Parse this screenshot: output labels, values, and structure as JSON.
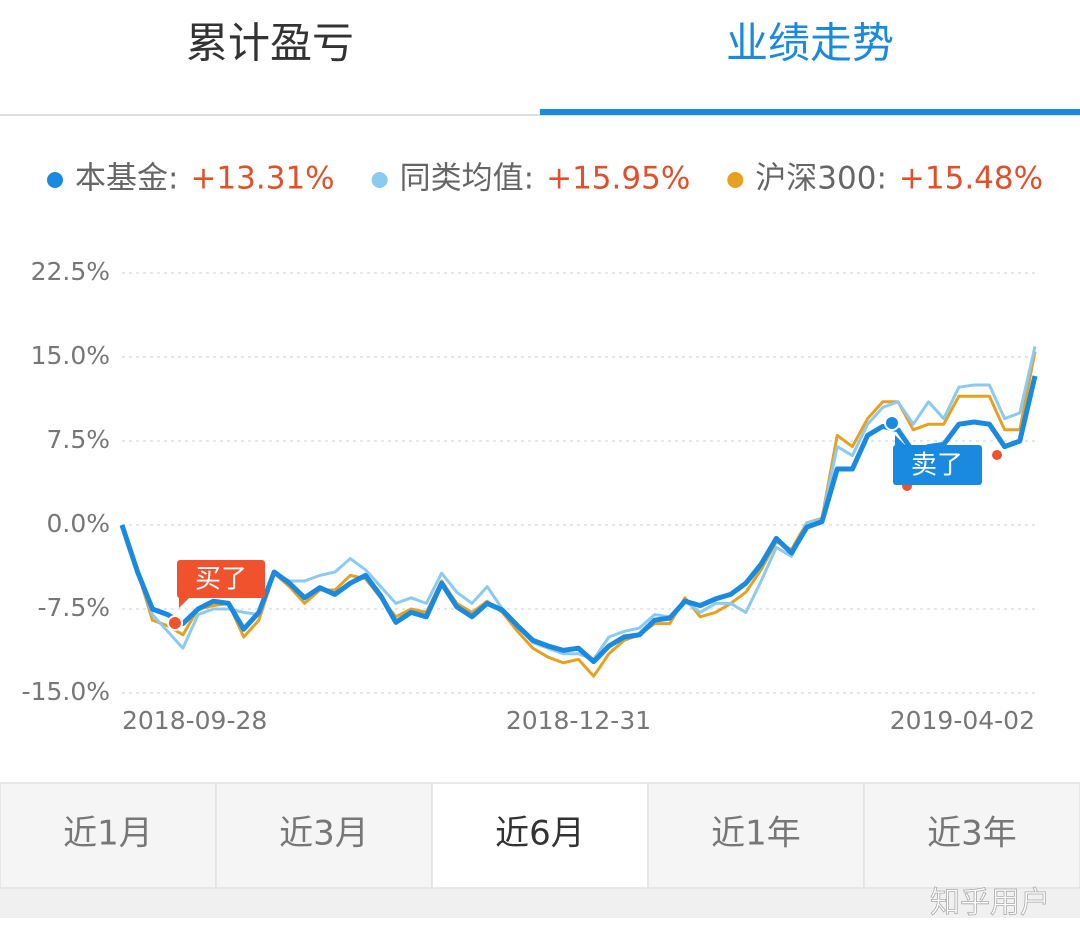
{
  "tabs": {
    "items": [
      "累计盈亏",
      "业绩走势"
    ],
    "active": 1
  },
  "chart_data": {
    "type": "line",
    "categories": [
      "2018-09-28",
      null,
      null,
      null,
      null,
      null,
      null,
      null,
      null,
      null,
      null,
      null,
      null,
      null,
      null,
      null,
      null,
      null,
      null,
      null,
      null,
      null,
      null,
      null,
      null,
      null,
      null,
      null,
      null,
      null,
      "2018-12-31",
      null,
      null,
      null,
      null,
      null,
      null,
      null,
      null,
      null,
      null,
      null,
      null,
      null,
      null,
      null,
      null,
      null,
      null,
      null,
      null,
      null,
      null,
      null,
      null,
      null,
      null,
      null,
      null,
      null,
      "2019-04-02"
    ],
    "series": [
      {
        "name": "本基金:",
        "legend_value": "+13.31%",
        "color": "#1a8ae0",
        "values": [
          0,
          -4.1,
          -7.5,
          -8.0,
          -8.8,
          -7.5,
          -6.8,
          -7.0,
          -9.3,
          -7.8,
          -4.2,
          -5.2,
          -6.5,
          -5.6,
          -6.2,
          -5.2,
          -4.5,
          -6.3,
          -8.7,
          -7.8,
          -8.2,
          -5.2,
          -7.3,
          -8.2,
          -7.0,
          -7.6,
          -9.0,
          -10.3,
          -10.8,
          -11.2,
          -11.0,
          -12.2,
          -10.8,
          -10.0,
          -9.8,
          -8.5,
          -8.3,
          -6.8,
          -7.2,
          -6.6,
          -6.2,
          -5.2,
          -3.5,
          -1.2,
          -2.5,
          -0.2,
          0.3,
          5.0,
          5.0,
          8.0,
          8.8,
          8.5,
          6.5,
          7.0,
          7.2,
          9.0,
          9.2,
          9.0,
          7.0,
          7.5,
          13.31
        ]
      },
      {
        "name": "同类均值:",
        "legend_value": "+15.95%",
        "color": "#8ccaf2",
        "values": [
          0,
          -4.0,
          -8.0,
          -9.5,
          -11.0,
          -8.0,
          -7.5,
          -7.5,
          -7.8,
          -8.0,
          -4.3,
          -5.0,
          -5.0,
          -4.5,
          -4.2,
          -3.0,
          -4.0,
          -5.5,
          -7.0,
          -6.5,
          -7.0,
          -4.3,
          -6.0,
          -7.0,
          -5.5,
          -7.5,
          -9.0,
          -10.5,
          -11.0,
          -11.5,
          -11.5,
          -12.0,
          -10.0,
          -9.5,
          -9.2,
          -8.0,
          -8.2,
          -6.8,
          -7.8,
          -7.0,
          -7.0,
          -7.8,
          -5.0,
          -2.0,
          -2.8,
          0.2,
          0.5,
          7.0,
          6.2,
          9.0,
          10.5,
          11.0,
          9.0,
          11.0,
          9.5,
          12.3,
          12.5,
          12.5,
          9.5,
          10.0,
          15.95
        ]
      },
      {
        "name": "沪深300:",
        "legend_value": "+15.48%",
        "color": "#e8a020",
        "values": [
          0,
          -4.0,
          -8.5,
          -9.0,
          -9.8,
          -7.5,
          -7.2,
          -7.0,
          -10.0,
          -8.5,
          -4.3,
          -5.5,
          -7.0,
          -5.8,
          -5.8,
          -4.5,
          -4.8,
          -6.5,
          -8.2,
          -7.5,
          -7.8,
          -5.0,
          -7.0,
          -7.8,
          -6.8,
          -7.8,
          -9.5,
          -11.0,
          -11.8,
          -12.3,
          -12.0,
          -13.5,
          -11.5,
          -10.3,
          -9.8,
          -8.8,
          -8.8,
          -6.5,
          -8.2,
          -7.8,
          -7.0,
          -6.0,
          -4.0,
          -1.5,
          -2.2,
          0.2,
          0.6,
          8.0,
          7.0,
          9.5,
          11.0,
          11.0,
          8.5,
          9.0,
          9.0,
          11.5,
          11.5,
          11.5,
          8.5,
          8.5,
          15.48
        ]
      }
    ],
    "ylim": [
      -15,
      22.5
    ],
    "yticks": [
      {
        "value": 22.5,
        "label": "22.5%"
      },
      {
        "value": 15,
        "label": "15.0%"
      },
      {
        "value": 7.5,
        "label": "7.5%"
      },
      {
        "value": 0,
        "label": "0.0%"
      },
      {
        "value": -7.5,
        "label": "-7.5%"
      },
      {
        "value": -15,
        "label": "-15.0%"
      }
    ],
    "grid": true,
    "annotations": [
      "买了",
      "卖了"
    ]
  },
  "periods": {
    "items": [
      "近1月",
      "近3月",
      "近6月",
      "近1年",
      "近3年"
    ],
    "active": 2
  },
  "watermark": "知乎用户"
}
